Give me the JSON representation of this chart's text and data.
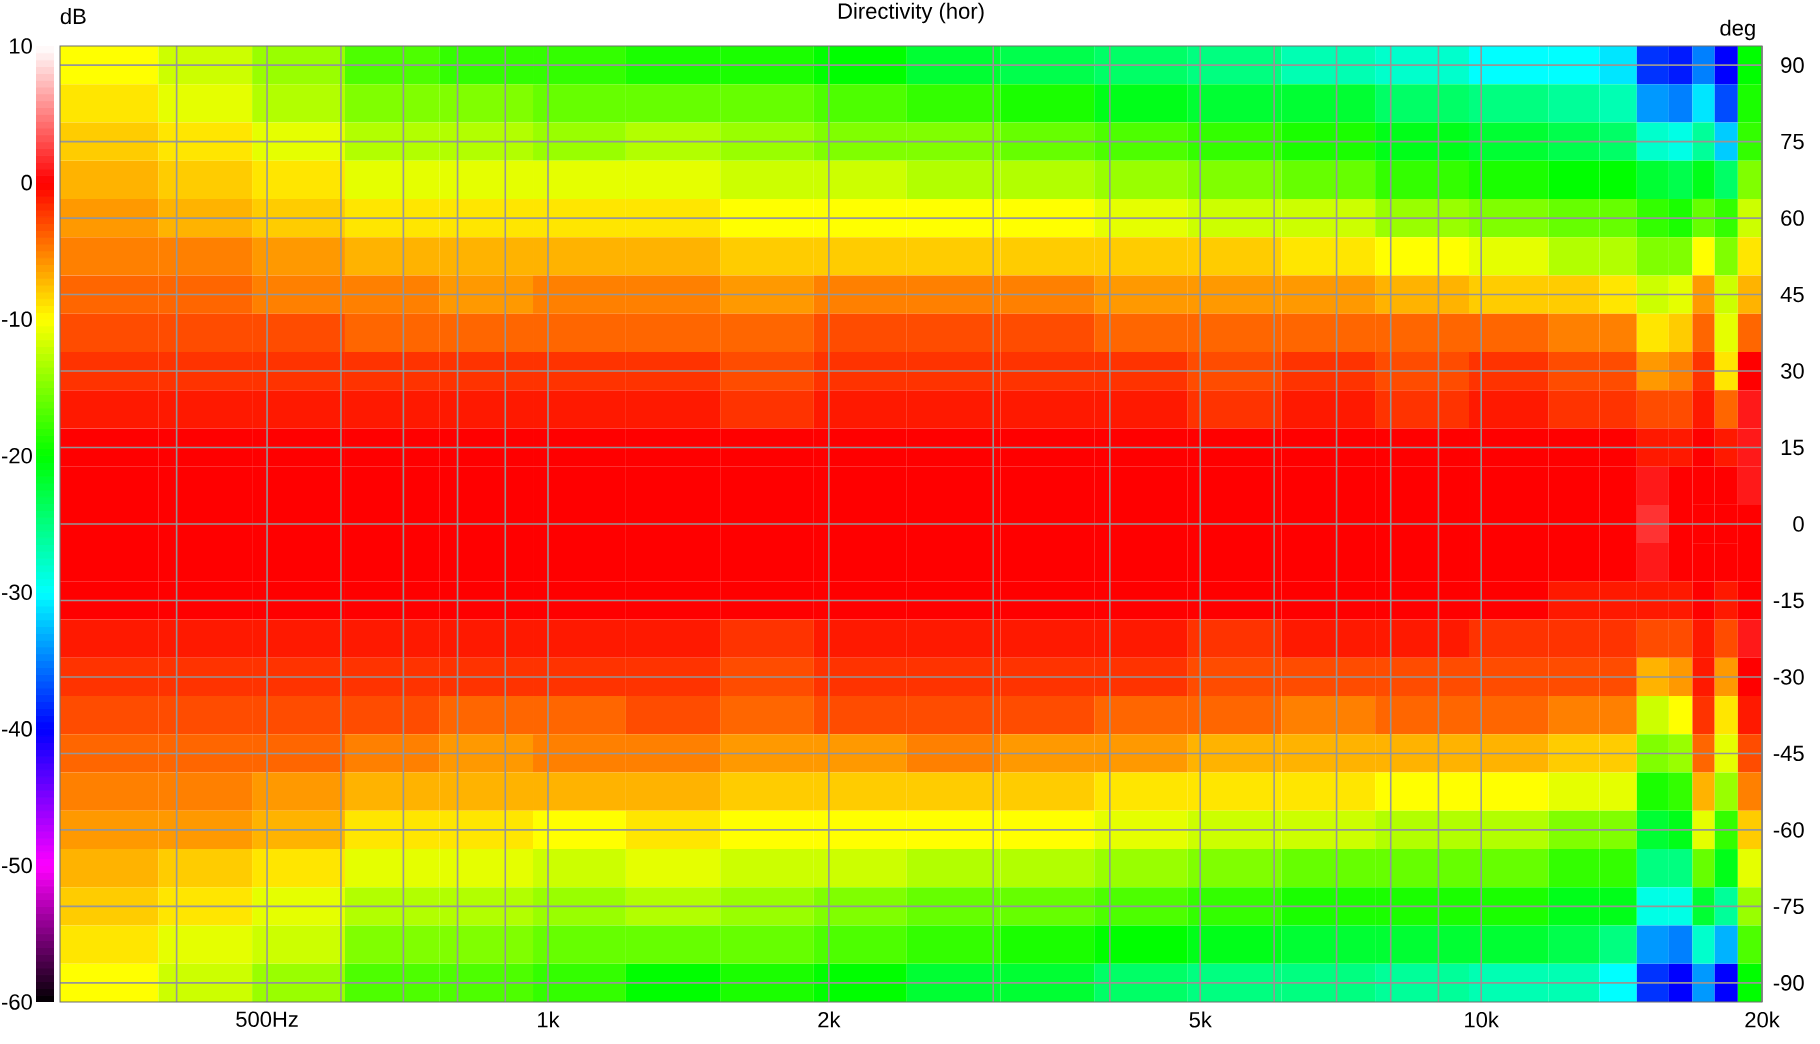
{
  "chart_data": {
    "type": "heatmap",
    "title": "Directivity (hor)",
    "ylabel": "deg",
    "clabel": "dB",
    "log": "x",
    "grid": true,
    "xlim": [
      300,
      20000
    ],
    "xticks": [
      {
        "value": 400,
        "label": null
      },
      {
        "value": 500,
        "label": "500Hz"
      },
      {
        "value": 600,
        "label": null
      },
      {
        "value": 700,
        "label": null
      },
      {
        "value": 800,
        "label": null
      },
      {
        "value": 900,
        "label": null
      },
      {
        "value": 1000,
        "label": "1k"
      },
      {
        "value": 2000,
        "label": "2k"
      },
      {
        "value": 3000,
        "label": null
      },
      {
        "value": 4000,
        "label": null
      },
      {
        "value": 5000,
        "label": "5k"
      },
      {
        "value": 6000,
        "label": null
      },
      {
        "value": 7000,
        "label": null
      },
      {
        "value": 8000,
        "label": null
      },
      {
        "value": 9000,
        "label": null
      },
      {
        "value": 10000,
        "label": "10k"
      },
      {
        "value": 20000,
        "label": "20k"
      }
    ],
    "x": [
      340,
      430,
      540,
      680,
      860,
      1080,
      1360,
      1720,
      2160,
      2720,
      3430,
      4320,
      5440,
      6860,
      8640,
      10900,
      12800,
      14000,
      15400,
      16400,
      17300,
      18300,
      19400
    ],
    "y_categories": [
      "90",
      null,
      "75",
      null,
      "60",
      null,
      "45",
      null,
      "30",
      null,
      "15",
      null,
      "0",
      null,
      "-15",
      null,
      "-30",
      null,
      "-45",
      null,
      "-60",
      null,
      "-75",
      null,
      "-90"
    ],
    "clim": [
      -60,
      10
    ],
    "cticks": [
      -60,
      -50,
      -40,
      -30,
      -20,
      -10,
      0,
      10
    ],
    "cells": [
      [
        -10,
        -12,
        -14,
        -17,
        -18,
        -18,
        -19,
        -19,
        -20,
        -22,
        -23,
        -24,
        -25,
        -27,
        -28,
        -30,
        -30,
        -31,
        -38,
        -39,
        -35,
        -40,
        -20
      ],
      [
        -9,
        -11,
        -13,
        -15,
        -15,
        -16,
        -16,
        -16,
        -17,
        -18,
        -19,
        -21,
        -22,
        -22,
        -24,
        -25,
        -26,
        -27,
        -34,
        -35,
        -31,
        -37,
        -19
      ],
      [
        -8,
        -9,
        -11,
        -13,
        -13,
        -14,
        -13,
        -14,
        -15,
        -15,
        -16,
        -17,
        -18,
        -19,
        -21,
        -22,
        -23,
        -24,
        -28,
        -29,
        -26,
        -32,
        -18
      ],
      [
        -7,
        -8,
        -9,
        -11,
        -11,
        -11,
        -11,
        -12,
        -12,
        -13,
        -13,
        -14,
        -15,
        -16,
        -18,
        -19,
        -20,
        -20,
        -22,
        -23,
        -21,
        -24,
        -15
      ],
      [
        -6,
        -7,
        -8,
        -9,
        -9,
        -9,
        -9,
        -10,
        -10,
        -10,
        -10,
        -11,
        -12,
        -12,
        -14,
        -15,
        -16,
        -16,
        -18,
        -19,
        -16,
        -18,
        -12
      ],
      [
        -5,
        -5,
        -6,
        -7,
        -7,
        -7,
        -7,
        -8,
        -8,
        -8,
        -8,
        -8,
        -8,
        -9,
        -10,
        -11,
        -13,
        -13,
        -15,
        -15,
        -10,
        -15,
        -9
      ],
      [
        -4,
        -4,
        -5,
        -5,
        -6,
        -5,
        -5,
        -6,
        -5,
        -5,
        -5,
        -6,
        -6,
        -6,
        -7,
        -8,
        -8,
        -9,
        -12,
        -11,
        -6,
        -12,
        -7
      ],
      [
        -3,
        -3,
        -3,
        -4,
        -4,
        -4,
        -4,
        -4,
        -3,
        -3,
        -3,
        -4,
        -4,
        -4,
        -4,
        -4,
        -5,
        -5,
        -9,
        -8,
        -4,
        -11,
        -4
      ],
      [
        -2,
        -2,
        -2,
        -2,
        -2,
        -2,
        -2,
        -3,
        -2,
        -2,
        -2,
        -2,
        -3,
        -2,
        -3,
        -2,
        -3,
        -3,
        -6,
        -5,
        -2,
        -9,
        0
      ],
      [
        -1,
        -1,
        -1,
        -1,
        -1,
        -1,
        -1,
        -2,
        -1,
        -1,
        -1,
        -1,
        -2,
        -1,
        -2,
        -1,
        -2,
        -2,
        -3,
        -3,
        -1,
        -4,
        1
      ],
      [
        0,
        0,
        0,
        0,
        0,
        0,
        0,
        0,
        0,
        0,
        0,
        0,
        0,
        0,
        0,
        0,
        0,
        0,
        -1,
        -1,
        0,
        -1,
        1
      ],
      [
        0,
        0,
        0,
        0,
        0,
        0,
        0,
        0,
        0,
        0,
        0,
        0,
        0,
        0,
        0,
        0,
        0,
        0,
        1,
        0,
        0,
        0,
        1
      ],
      [
        0,
        0,
        0,
        0,
        0,
        0,
        0,
        0,
        0,
        0,
        0,
        0,
        0,
        0,
        0,
        0,
        0,
        0,
        2,
        0,
        0,
        0,
        0
      ],
      [
        0,
        0,
        0,
        0,
        0,
        0,
        0,
        0,
        0,
        0,
        0,
        0,
        0,
        0,
        0,
        0,
        0,
        0,
        1,
        0,
        0,
        0,
        0
      ],
      [
        0,
        0,
        0,
        0,
        0,
        0,
        0,
        0,
        0,
        0,
        0,
        0,
        0,
        0,
        0,
        0,
        -1,
        -1,
        -1,
        -1,
        0,
        -1,
        0
      ],
      [
        -1,
        -1,
        -1,
        -1,
        -1,
        -1,
        -1,
        -2,
        -1,
        -1,
        -1,
        -1,
        -2,
        -1,
        -1,
        -2,
        -2,
        -2,
        -3,
        -3,
        -1,
        -3,
        1
      ],
      [
        -2,
        -2,
        -2,
        -2,
        -2,
        -2,
        -2,
        -3,
        -2,
        -2,
        -2,
        -2,
        -3,
        -3,
        -3,
        -3,
        -3,
        -3,
        -7,
        -6,
        -1,
        -6,
        0
      ],
      [
        -3,
        -3,
        -3,
        -3,
        -4,
        -4,
        -3,
        -4,
        -3,
        -3,
        -3,
        -4,
        -4,
        -5,
        -4,
        -4,
        -5,
        -5,
        -12,
        -10,
        -2,
        -9,
        -1
      ],
      [
        -4,
        -4,
        -4,
        -5,
        -6,
        -5,
        -5,
        -6,
        -6,
        -5,
        -6,
        -6,
        -7,
        -7,
        -7,
        -7,
        -8,
        -8,
        -15,
        -14,
        -4,
        -11,
        -3
      ],
      [
        -5,
        -5,
        -6,
        -7,
        -7,
        -7,
        -7,
        -8,
        -8,
        -8,
        -8,
        -9,
        -9,
        -9,
        -10,
        -10,
        -11,
        -11,
        -19,
        -18,
        -7,
        -14,
        -5
      ],
      [
        -6,
        -6,
        -7,
        -9,
        -9,
        -10,
        -9,
        -10,
        -10,
        -10,
        -10,
        -11,
        -12,
        -12,
        -13,
        -13,
        -15,
        -15,
        -22,
        -21,
        -11,
        -18,
        -8
      ],
      [
        -7,
        -8,
        -9,
        -11,
        -11,
        -12,
        -11,
        -12,
        -12,
        -13,
        -13,
        -14,
        -15,
        -16,
        -16,
        -16,
        -18,
        -18,
        -25,
        -25,
        -16,
        -21,
        -11
      ],
      [
        -8,
        -9,
        -11,
        -13,
        -13,
        -14,
        -13,
        -14,
        -15,
        -16,
        -16,
        -17,
        -18,
        -19,
        -19,
        -19,
        -21,
        -21,
        -29,
        -29,
        -22,
        -26,
        -14
      ],
      [
        -9,
        -11,
        -12,
        -15,
        -15,
        -16,
        -16,
        -16,
        -17,
        -18,
        -19,
        -20,
        -21,
        -22,
        -22,
        -22,
        -23,
        -25,
        -34,
        -35,
        -28,
        -33,
        -17
      ],
      [
        -10,
        -12,
        -14,
        -17,
        -17,
        -18,
        -20,
        -19,
        -20,
        -22,
        -22,
        -24,
        -25,
        -25,
        -26,
        -27,
        -27,
        -30,
        -38,
        -40,
        -34,
        -40,
        -20
      ]
    ]
  }
}
